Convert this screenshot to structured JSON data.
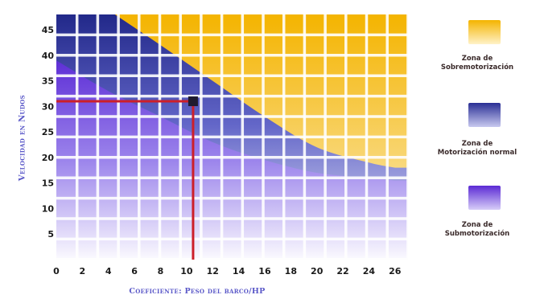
{
  "chart_data": {
    "type": "heatmap",
    "title": "",
    "xlabel": "Coeficiente: Peso del barco/HP",
    "ylabel": "Velocidad en Nudos",
    "xlim": [
      0,
      27
    ],
    "ylim": [
      0,
      48
    ],
    "x_ticks": [
      0,
      2,
      4,
      6,
      8,
      10,
      12,
      14,
      16,
      18,
      20,
      22,
      24,
      26
    ],
    "y_ticks": [
      5,
      10,
      15,
      20,
      25,
      30,
      35,
      40,
      45
    ],
    "zones": [
      {
        "name": "Zona de Sobremotorización",
        "color": "#f6c232"
      },
      {
        "name": "Zona de Motorización normal",
        "color": "#3336a8"
      },
      {
        "name": "Zona de Submotorización",
        "color": "#7a4fe0"
      }
    ],
    "upper_boundary": {
      "x": [
        4.5,
        8,
        12,
        16,
        20,
        24,
        26
      ],
      "y": [
        48,
        42,
        35,
        28,
        22,
        19,
        18
      ]
    },
    "lower_boundary": {
      "x": [
        0,
        4,
        8,
        12,
        16,
        20,
        24,
        26
      ],
      "y": [
        39,
        33,
        28,
        23,
        19.5,
        17,
        16,
        15.5
      ]
    },
    "marker": {
      "x": 10.5,
      "y": 31
    },
    "guide_color": "#cc1f2a"
  },
  "legend": {
    "sobre": {
      "line1": "Zona de",
      "line2": "Sobremotorización"
    },
    "normal": {
      "line1": "Zona de",
      "line2": "Motorización normal"
    },
    "sub": {
      "line1": "Zona de",
      "line2": "Submotorización"
    }
  }
}
